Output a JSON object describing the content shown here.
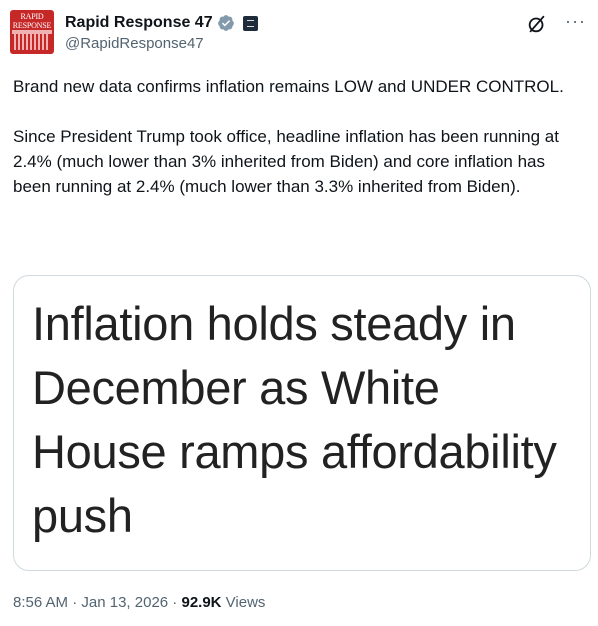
{
  "header": {
    "avatar_text": "RAPID RESPONSE",
    "display_name": "Rapid Response 47",
    "handle": "@RapidResponse47"
  },
  "tweet": {
    "paragraph_1": "Brand new data confirms inflation remains LOW and UNDER CONTROL.",
    "paragraph_2": "Since President Trump took office, headline inflation has been running at 2.4% (much lower than 3% inherited from Biden) and core inflation has been running at 2.4% (much lower than 3.3% inherited from Biden)."
  },
  "card": {
    "headline": "Inflation holds steady in December as White House ramps affordability push"
  },
  "meta": {
    "time": "8:56 AM",
    "separator_1": " · ",
    "date": "Jan 13, 2026",
    "separator_2": " · ",
    "views_count": "92.9K",
    "views_label": " Views"
  },
  "colors": {
    "verified_badge": "#829aab",
    "avatar_bg": "#c62828",
    "secondary_text": "#536471"
  },
  "icons": [
    "verified-badge-icon",
    "government-badge-icon",
    "grok-icon",
    "more-options-icon"
  ]
}
